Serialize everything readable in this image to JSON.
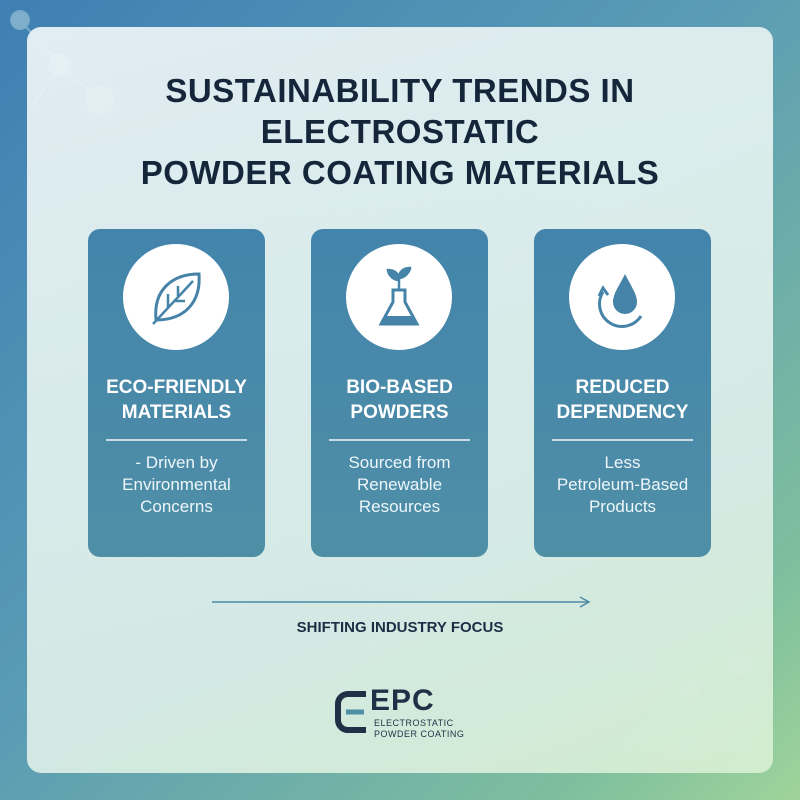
{
  "header": {
    "title_lines": [
      "SUSTAINABILITY TRENDS IN",
      "ELECTROSTATIC",
      "POWDER COATING MATERIALS"
    ]
  },
  "cards": [
    {
      "title_lines": [
        "ECO-FRIENDLY",
        "MATERIALS"
      ],
      "description_lines": [
        "- Driven by",
        "Environmental",
        "Concerns"
      ]
    },
    {
      "title_lines": [
        "BIO-BASED",
        "POWDERS"
      ],
      "description_lines": [
        "Sourced from",
        "Renewable",
        "Resources"
      ]
    },
    {
      "title_lines": [
        "REDUCED",
        "DEPENDENCY"
      ],
      "description_lines": [
        "Less",
        "Petroleum-Based",
        "Products"
      ]
    }
  ],
  "arrow_label": "SHIFTING INDUSTRY FOCUS",
  "logo": {
    "mark": "EPC",
    "line1": "ELECTROSTATIC",
    "line2": "POWDER COATING"
  }
}
